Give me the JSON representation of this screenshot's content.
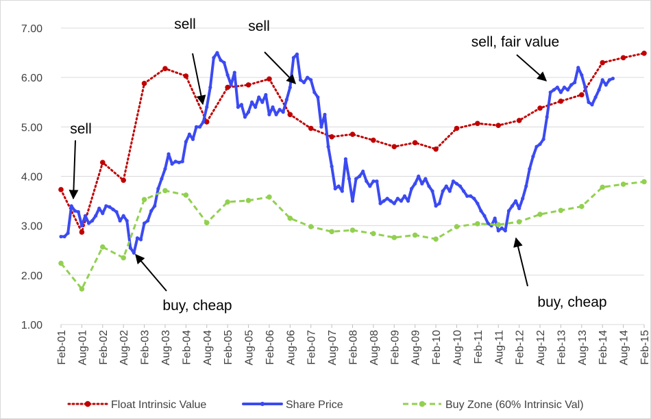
{
  "chart_data": {
    "type": "line",
    "annotations": [
      "sell",
      "sell",
      "sell",
      "sell, fair value",
      "buy, cheap",
      "buy, cheap"
    ],
    "xlim": [
      "2001-02",
      "2015-02"
    ],
    "xticks": [
      {
        "value": "2001-02",
        "label": "Feb-01"
      },
      {
        "value": "2001-08",
        "label": "Aug-01"
      },
      {
        "value": "2002-02",
        "label": "Feb-02"
      },
      {
        "value": "2002-08",
        "label": "Aug-02"
      },
      {
        "value": "2003-02",
        "label": "Feb-03"
      },
      {
        "value": "2003-08",
        "label": "Aug-03"
      },
      {
        "value": "2004-02",
        "label": "Feb-04"
      },
      {
        "value": "2004-08",
        "label": "Aug-04"
      },
      {
        "value": "2005-02",
        "label": "Feb-05"
      },
      {
        "value": "2005-08",
        "label": "Aug-05"
      },
      {
        "value": "2006-02",
        "label": "Feb-06"
      },
      {
        "value": "2006-08",
        "label": "Aug-06"
      },
      {
        "value": "2007-02",
        "label": "Feb-07"
      },
      {
        "value": "2007-08",
        "label": "Aug-07"
      },
      {
        "value": "2008-02",
        "label": "Feb-08"
      },
      {
        "value": "2008-08",
        "label": "Aug-08"
      },
      {
        "value": "2009-02",
        "label": "Feb-09"
      },
      {
        "value": "2009-08",
        "label": "Aug-09"
      },
      {
        "value": "2010-02",
        "label": "Feb-10"
      },
      {
        "value": "2010-08",
        "label": "Aug-10"
      },
      {
        "value": "2011-02",
        "label": "Feb-11"
      },
      {
        "value": "2011-08",
        "label": "Aug-11"
      },
      {
        "value": "2012-02",
        "label": "Feb-12"
      },
      {
        "value": "2012-08",
        "label": "Aug-12"
      },
      {
        "value": "2013-02",
        "label": "Feb-13"
      },
      {
        "value": "2013-08",
        "label": "Aug-13"
      },
      {
        "value": "2014-02",
        "label": "Feb-14"
      },
      {
        "value": "2014-08",
        "label": "Aug-14"
      },
      {
        "value": "2015-02",
        "label": "Feb-15"
      }
    ],
    "ylim": [
      1,
      7
    ],
    "yticks": [
      {
        "value": 1,
        "label": "1.00"
      },
      {
        "value": 2,
        "label": "2.00"
      },
      {
        "value": 3,
        "label": "3.00"
      },
      {
        "value": 4,
        "label": "4.00"
      },
      {
        "value": 5,
        "label": "5.00"
      },
      {
        "value": 6,
        "label": "6.00"
      },
      {
        "value": 7,
        "label": "7.00"
      }
    ],
    "grid": true,
    "legend": "bottom",
    "series": [
      {
        "name": "Float Intrinsic Value",
        "color": "#c00000",
        "style": "dotted",
        "x": [
          "2001-02",
          "2001-08",
          "2002-02",
          "2002-08",
          "2003-02",
          "2003-08",
          "2004-02",
          "2004-08",
          "2005-02",
          "2005-08",
          "2006-02",
          "2006-08",
          "2007-02",
          "2007-08",
          "2008-02",
          "2008-08",
          "2009-02",
          "2009-08",
          "2010-02",
          "2010-08",
          "2011-02",
          "2011-08",
          "2012-02",
          "2012-08",
          "2013-02",
          "2013-08",
          "2014-02",
          "2014-08",
          "2015-02"
        ],
        "values": [
          3.73,
          2.87,
          4.28,
          3.92,
          5.88,
          6.18,
          6.03,
          5.1,
          5.8,
          5.85,
          5.97,
          5.25,
          4.97,
          4.8,
          4.85,
          4.73,
          4.6,
          4.68,
          4.55,
          4.97,
          5.07,
          5.03,
          5.13,
          5.38,
          5.52,
          5.65,
          6.3,
          6.4,
          6.49
        ]
      },
      {
        "name": "Share Price",
        "color": "#3b4af2",
        "style": "solid",
        "x": [
          "2001-02",
          "2001-03",
          "2001-04",
          "2001-05",
          "2001-06",
          "2001-07",
          "2001-08",
          "2001-09",
          "2001-10",
          "2001-11",
          "2001-12",
          "2002-01",
          "2002-02",
          "2002-03",
          "2002-04",
          "2002-05",
          "2002-06",
          "2002-07",
          "2002-08",
          "2002-09",
          "2002-10",
          "2002-11",
          "2002-12",
          "2003-01",
          "2003-02",
          "2003-03",
          "2003-04",
          "2003-05",
          "2003-06",
          "2003-07",
          "2003-08",
          "2003-09",
          "2003-10",
          "2003-11",
          "2003-12",
          "2004-01",
          "2004-02",
          "2004-03",
          "2004-04",
          "2004-05",
          "2004-06",
          "2004-07",
          "2004-08",
          "2004-09",
          "2004-10",
          "2004-11",
          "2004-12",
          "2005-01",
          "2005-02",
          "2005-03",
          "2005-04",
          "2005-05",
          "2005-06",
          "2005-07",
          "2005-08",
          "2005-09",
          "2005-10",
          "2005-11",
          "2005-12",
          "2006-01",
          "2006-02",
          "2006-03",
          "2006-04",
          "2006-05",
          "2006-06",
          "2006-07",
          "2006-08",
          "2006-09",
          "2006-10",
          "2006-11",
          "2006-12",
          "2007-01",
          "2007-02",
          "2007-03",
          "2007-04",
          "2007-05",
          "2007-06",
          "2007-07",
          "2007-08",
          "2007-09",
          "2007-10",
          "2007-11",
          "2007-12",
          "2008-01",
          "2008-02",
          "2008-03",
          "2008-04",
          "2008-05",
          "2008-06",
          "2008-07",
          "2008-08",
          "2008-09",
          "2008-10",
          "2008-11",
          "2008-12",
          "2009-01",
          "2009-02",
          "2009-03",
          "2009-04",
          "2009-05",
          "2009-06",
          "2009-07",
          "2009-08",
          "2009-09",
          "2009-10",
          "2009-11",
          "2009-12",
          "2010-01",
          "2010-02",
          "2010-03",
          "2010-04",
          "2010-05",
          "2010-06",
          "2010-07",
          "2010-08",
          "2010-09",
          "2010-10",
          "2010-11",
          "2010-12",
          "2011-01",
          "2011-02",
          "2011-03",
          "2011-04",
          "2011-05",
          "2011-06",
          "2011-07",
          "2011-08",
          "2011-09",
          "2011-10",
          "2011-11",
          "2011-12",
          "2012-01",
          "2012-02",
          "2012-03",
          "2012-04",
          "2012-05",
          "2012-06",
          "2012-07",
          "2012-08",
          "2012-09",
          "2012-10",
          "2012-11",
          "2012-12",
          "2013-01",
          "2013-02",
          "2013-03",
          "2013-04",
          "2013-05",
          "2013-06",
          "2013-07",
          "2013-08",
          "2013-09",
          "2013-10",
          "2013-11",
          "2013-12",
          "2014-01",
          "2014-02",
          "2014-03",
          "2014-04",
          "2014-05"
        ],
        "values": [
          2.78,
          2.78,
          2.85,
          3.4,
          3.3,
          3.28,
          3.0,
          3.2,
          3.05,
          3.1,
          3.2,
          3.35,
          3.25,
          3.4,
          3.38,
          3.33,
          3.28,
          3.1,
          3.2,
          3.1,
          2.55,
          2.45,
          2.75,
          2.72,
          3.05,
          3.1,
          3.3,
          3.4,
          3.75,
          3.95,
          4.15,
          4.45,
          4.25,
          4.3,
          4.28,
          4.3,
          4.7,
          4.85,
          4.75,
          5.0,
          5.0,
          5.1,
          5.4,
          5.8,
          6.4,
          6.5,
          6.35,
          6.3,
          6.05,
          5.85,
          6.1,
          5.4,
          5.45,
          5.2,
          5.3,
          5.5,
          5.4,
          5.6,
          5.5,
          5.65,
          5.25,
          5.4,
          5.25,
          5.35,
          5.3,
          5.55,
          5.8,
          6.4,
          6.47,
          5.95,
          5.9,
          6.0,
          5.95,
          5.7,
          5.6,
          5.0,
          5.25,
          4.6,
          4.2,
          3.75,
          3.8,
          3.7,
          4.35,
          3.95,
          3.5,
          3.95,
          4.0,
          4.1,
          3.9,
          3.8,
          3.9,
          3.9,
          3.45,
          3.5,
          3.55,
          3.5,
          3.45,
          3.55,
          3.5,
          3.6,
          3.5,
          3.75,
          3.85,
          4.0,
          3.85,
          3.95,
          3.8,
          3.7,
          3.4,
          3.45,
          3.7,
          3.8,
          3.7,
          3.9,
          3.85,
          3.8,
          3.7,
          3.6,
          3.6,
          3.55,
          3.45,
          3.3,
          3.2,
          3.05,
          3.0,
          3.15,
          2.9,
          2.95,
          2.9,
          3.3,
          3.4,
          3.5,
          3.35,
          3.55,
          3.8,
          4.15,
          4.4,
          4.6,
          4.65,
          4.75,
          5.2,
          5.7,
          5.75,
          5.8,
          5.7,
          5.8,
          5.75,
          5.85,
          5.9,
          6.2,
          6.05,
          5.8,
          5.5,
          5.45,
          5.6,
          5.75,
          5.95,
          5.85,
          5.95,
          5.98
        ]
      },
      {
        "name": "Buy Zone (60% Intrinsic Val)",
        "color": "#92d050",
        "style": "dashed",
        "x": [
          "2001-02",
          "2001-08",
          "2002-02",
          "2002-08",
          "2003-02",
          "2003-08",
          "2004-02",
          "2004-08",
          "2005-02",
          "2005-08",
          "2006-02",
          "2006-08",
          "2007-02",
          "2007-08",
          "2008-02",
          "2008-08",
          "2009-02",
          "2009-08",
          "2010-02",
          "2010-08",
          "2011-02",
          "2011-08",
          "2012-02",
          "2012-08",
          "2013-02",
          "2013-08",
          "2014-02",
          "2014-08",
          "2015-02"
        ],
        "values": [
          2.24,
          1.72,
          2.57,
          2.35,
          3.53,
          3.71,
          3.62,
          3.06,
          3.48,
          3.51,
          3.58,
          3.15,
          2.98,
          2.88,
          2.91,
          2.84,
          2.76,
          2.81,
          2.73,
          2.98,
          3.04,
          3.02,
          3.08,
          3.23,
          3.31,
          3.39,
          3.78,
          3.84,
          3.89
        ]
      }
    ]
  }
}
